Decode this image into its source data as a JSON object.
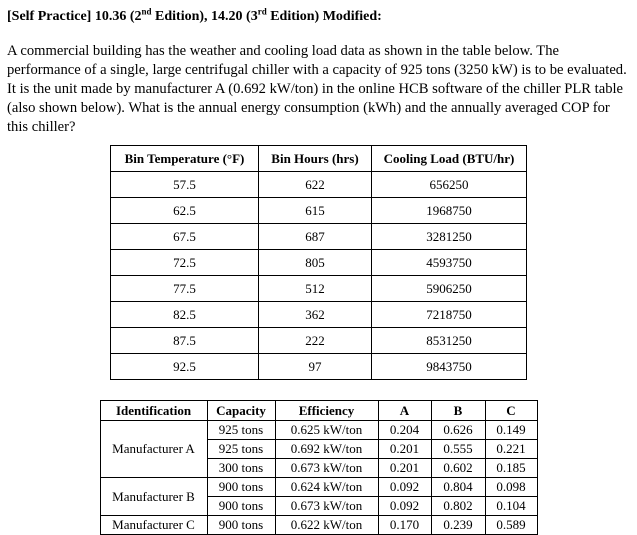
{
  "page": {
    "title": {
      "prefix": "[Self Practice] 10.36 (2",
      "sup1": "nd",
      "mid": " Edition), 14.20 (3",
      "sup2": "rd",
      "suffix": " Edition) Modified:"
    },
    "paragraph": "A commercial building has the weather and cooling load data as shown in the table below. The performance of a single, large centrifugal chiller with a capacity of 925 tons (3250 kW) is to be evaluated. It is the unit made by manufacturer A (0.692 kW/ton) in the online HCB software of the chiller PLR table (also shown below). What is the annual energy consumption (kWh) and the annually averaged COP for this chiller?"
  },
  "bin_table": {
    "headers": [
      "Bin Temperature (°F)",
      "Bin Hours (hrs)",
      "Cooling Load (BTU/hr)"
    ],
    "rows": [
      [
        "57.5",
        "622",
        "656250"
      ],
      [
        "62.5",
        "615",
        "1968750"
      ],
      [
        "67.5",
        "687",
        "3281250"
      ],
      [
        "72.5",
        "805",
        "4593750"
      ],
      [
        "77.5",
        "512",
        "5906250"
      ],
      [
        "82.5",
        "362",
        "7218750"
      ],
      [
        "87.5",
        "222",
        "8531250"
      ],
      [
        "92.5",
        "97",
        "9843750"
      ]
    ]
  },
  "plr_table": {
    "headers": [
      "Identification",
      "Capacity",
      "Efficiency",
      "A",
      "B",
      "C"
    ],
    "rows": [
      {
        "identification": "Manufacturer A",
        "rowspan": 3,
        "cells": [
          "925 tons",
          "0.625 kW/ton",
          "0.204",
          "0.626",
          "0.149"
        ]
      },
      {
        "cells": [
          "925 tons",
          "0.692 kW/ton",
          "0.201",
          "0.555",
          "0.221"
        ]
      },
      {
        "cells": [
          "300 tons",
          "0.673 kW/ton",
          "0.201",
          "0.602",
          "0.185"
        ]
      },
      {
        "identification": "Manufacturer B",
        "rowspan": 2,
        "cells": [
          "900 tons",
          "0.624 kW/ton",
          "0.092",
          "0.804",
          "0.098"
        ]
      },
      {
        "cells": [
          "900 tons",
          "0.673 kW/ton",
          "0.092",
          "0.802",
          "0.104"
        ]
      },
      {
        "identification": "Manufacturer C",
        "rowspan": 1,
        "cells": [
          "900 tons",
          "0.622 kW/ton",
          "0.170",
          "0.239",
          "0.589"
        ]
      }
    ]
  }
}
